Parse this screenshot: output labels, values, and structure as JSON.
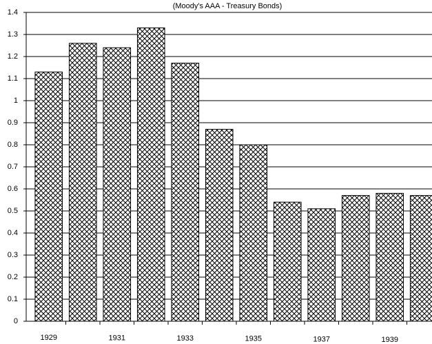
{
  "chart_data": {
    "type": "bar",
    "title": "(Moody's AAA - Treasury Bonds)",
    "categories": [
      "1929",
      null,
      "1931",
      null,
      "1933",
      null,
      "1935",
      null,
      "1937",
      null,
      "1939",
      null
    ],
    "values": [
      1.13,
      1.26,
      1.24,
      1.33,
      1.17,
      0.87,
      0.8,
      0.54,
      0.51,
      0.57,
      0.58,
      0.57
    ],
    "color": "#000000",
    "ylim": [
      0,
      1.4
    ],
    "yticks": [
      0,
      0.1,
      0.2,
      0.3,
      0.4,
      0.5,
      0.6,
      0.7,
      0.8,
      0.9,
      1,
      1.1,
      1.2,
      1.3,
      1.4
    ],
    "grid": true
  }
}
